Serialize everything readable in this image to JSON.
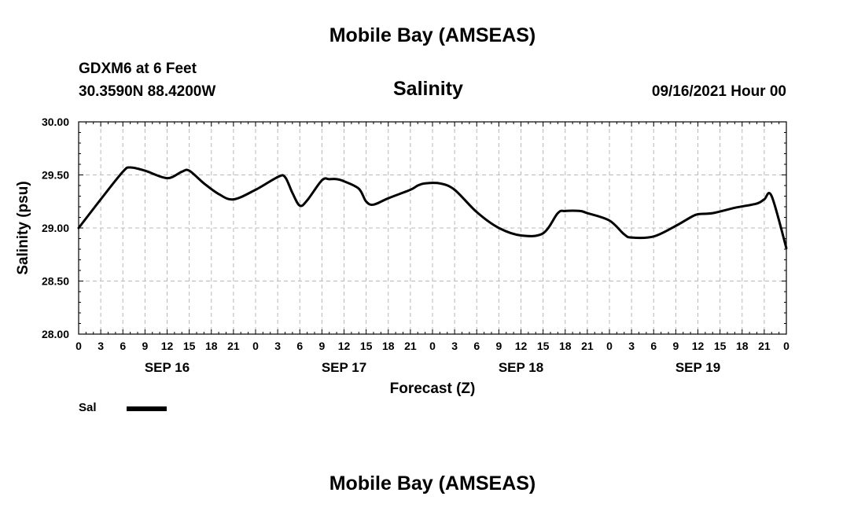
{
  "page": {
    "title_top": "Mobile Bay (AMSEAS)",
    "title_bottom": "Mobile Bay (AMSEAS)",
    "station": "GDXM6 at 6 Feet",
    "coords": "30.3590N  88.4200W",
    "variable": "Salinity",
    "issued": "09/16/2021 Hour 00"
  },
  "chart_data": {
    "type": "line",
    "xlabel": "Forecast (Z)",
    "ylabel": "Salinity (psu)",
    "ylim": [
      28.0,
      30.0
    ],
    "yticks": [
      "28.00",
      "28.50",
      "29.00",
      "29.50",
      "30.00"
    ],
    "xlim_hours": [
      0,
      96
    ],
    "x_tick_labels": [
      "0",
      "3",
      "6",
      "9",
      "12",
      "15",
      "18",
      "21",
      "0",
      "3",
      "6",
      "9",
      "12",
      "15",
      "18",
      "21",
      "0",
      "3",
      "6",
      "9",
      "12",
      "15",
      "18",
      "21",
      "0",
      "3",
      "6",
      "9",
      "12",
      "15",
      "18",
      "21",
      "0"
    ],
    "day_labels": [
      {
        "label": "SEP 16",
        "hour": 12
      },
      {
        "label": "SEP 17",
        "hour": 36
      },
      {
        "label": "SEP 18",
        "hour": 60
      },
      {
        "label": "SEP 19",
        "hour": 84
      }
    ],
    "grid": true,
    "legend": "bottom-left",
    "series": [
      {
        "name": "Sal",
        "color": "#000000",
        "x_hours": [
          0,
          3,
          6,
          7,
          9,
          12,
          14,
          15,
          17,
          19,
          21,
          24,
          27,
          28,
          29,
          30,
          31,
          33,
          34,
          35,
          36,
          38,
          39,
          40,
          42,
          45,
          46,
          47,
          49,
          51,
          54,
          57,
          60,
          63,
          65,
          66,
          68,
          69,
          72,
          74,
          75,
          78,
          81,
          83,
          84,
          86,
          89,
          92,
          93,
          94,
          96
        ],
        "values": [
          29.0,
          29.27,
          29.53,
          29.57,
          29.54,
          29.47,
          29.53,
          29.54,
          29.42,
          29.32,
          29.27,
          29.36,
          29.48,
          29.48,
          29.33,
          29.21,
          29.26,
          29.45,
          29.46,
          29.46,
          29.44,
          29.37,
          29.25,
          29.22,
          29.28,
          29.36,
          29.4,
          29.42,
          29.42,
          29.36,
          29.15,
          29.0,
          28.93,
          28.95,
          29.14,
          29.16,
          29.16,
          29.14,
          29.07,
          28.94,
          28.91,
          28.92,
          29.02,
          29.1,
          29.13,
          29.14,
          29.19,
          29.23,
          29.27,
          29.3,
          28.81
        ]
      }
    ]
  }
}
